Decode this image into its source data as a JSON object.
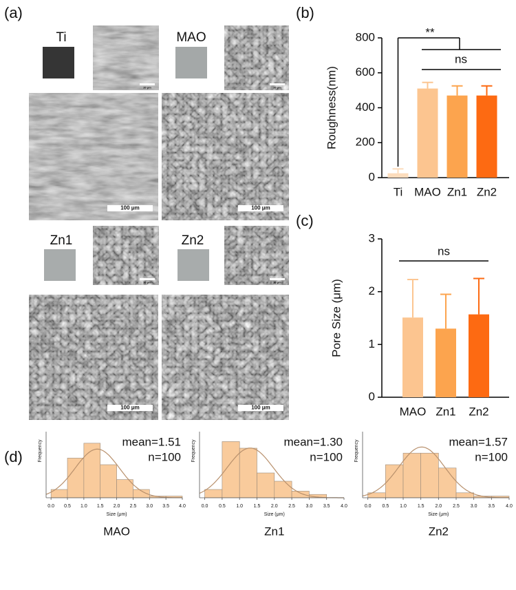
{
  "figure": {
    "panel_labels": [
      "(a)",
      "(b)",
      "(c)",
      "(d)"
    ],
    "samples": [
      "Ti",
      "MAO",
      "Zn1",
      "Zn2"
    ],
    "scale_bar_large": "100 μm",
    "scale_bar_small": "20 μm"
  },
  "chart_data": [
    {
      "type": "bar",
      "ylabel": "Roughness(nm)",
      "categories": [
        "Ti",
        "MAO",
        "Zn1",
        "Zn2"
      ],
      "values": [
        25,
        510,
        470,
        470
      ],
      "errors": [
        25,
        35,
        55,
        55
      ],
      "colors": [
        "#fcdcbc",
        "#fcc590",
        "#fca44e",
        "#fd6a12"
      ],
      "ylim": [
        0,
        800
      ],
      "yticks": [
        0,
        200,
        400,
        600,
        800
      ],
      "annotations": [
        "**",
        "ns"
      ]
    },
    {
      "type": "bar",
      "ylabel": "Pore Size  (μm)",
      "categories": [
        "MAO",
        "Zn1",
        "Zn2"
      ],
      "values": [
        1.51,
        1.3,
        1.57
      ],
      "errors": [
        0.72,
        0.65,
        0.68
      ],
      "colors": [
        "#fcc590",
        "#fca44e",
        "#fd6a12"
      ],
      "ylim": [
        0,
        3
      ],
      "yticks": [
        0,
        1,
        2,
        3
      ],
      "annotations": [
        "ns"
      ]
    },
    {
      "type": "histogram",
      "title": "MAO",
      "xlabel": "Size (μm)",
      "ylabel": "Frequency",
      "bins": [
        0,
        0.5,
        1,
        1.5,
        2,
        2.5,
        3,
        3.5,
        4
      ],
      "values": [
        5,
        24,
        33,
        20,
        11,
        5,
        1,
        1
      ],
      "annotations": [
        "mean=1.51",
        "n=100"
      ],
      "xlim": [
        -0.15,
        4
      ],
      "ylim": [
        0,
        40
      ],
      "color": "#f9cb9c",
      "curve_color": "#b8906c",
      "xticks": [
        {
          "value": 0,
          "label": "0.0"
        },
        0.5,
        {
          "value": 1,
          "label": "1.0"
        },
        1.5,
        {
          "value": 2,
          "label": "2.0"
        },
        2.5,
        {
          "value": 3,
          "label": "3.0"
        },
        3.5,
        {
          "value": 4,
          "label": "4.0"
        }
      ]
    },
    {
      "type": "histogram",
      "title": "Zn1",
      "xlabel": "Size (μm)",
      "ylabel": "Frequency",
      "bins": [
        0,
        0.5,
        1,
        1.5,
        2,
        2.5,
        3,
        3.5
      ],
      "values": [
        5,
        34,
        30,
        15,
        10,
        4,
        2
      ],
      "annotations": [
        "mean=1.30",
        "n=100"
      ],
      "xlim": [
        -0.15,
        4
      ],
      "ylim": [
        0,
        40
      ],
      "color": "#f9cb9c",
      "curve_color": "#b8906c",
      "xticks": [
        {
          "value": 0,
          "label": "0.0"
        },
        0.5,
        {
          "value": 1,
          "label": "1.0"
        },
        1.5,
        {
          "value": 2,
          "label": "2.0"
        },
        2.5,
        {
          "value": 3,
          "label": "3.0"
        },
        3.5,
        {
          "value": 4,
          "label": "4.0"
        }
      ]
    },
    {
      "type": "histogram",
      "title": "Zn2",
      "xlabel": "Size (μm)",
      "ylabel": "Frequency",
      "bins": [
        0,
        0.5,
        1,
        1.5,
        2,
        2.5,
        3,
        3.5,
        4
      ],
      "values": [
        3,
        20,
        27,
        27,
        18,
        3,
        1,
        1
      ],
      "annotations": [
        "mean=1.57",
        "n=100"
      ],
      "xlim": [
        -0.15,
        4
      ],
      "ylim": [
        0,
        40
      ],
      "color": "#f9cb9c",
      "curve_color": "#b8906c",
      "xticks": [
        {
          "value": 0,
          "label": "0.0"
        },
        0.5,
        {
          "value": 1,
          "label": "1.0"
        },
        1.5,
        {
          "value": 2,
          "label": "2.0"
        },
        2.5,
        {
          "value": 3,
          "label": "3.0"
        },
        3.5,
        {
          "value": 4,
          "label": "4.0"
        }
      ]
    }
  ]
}
